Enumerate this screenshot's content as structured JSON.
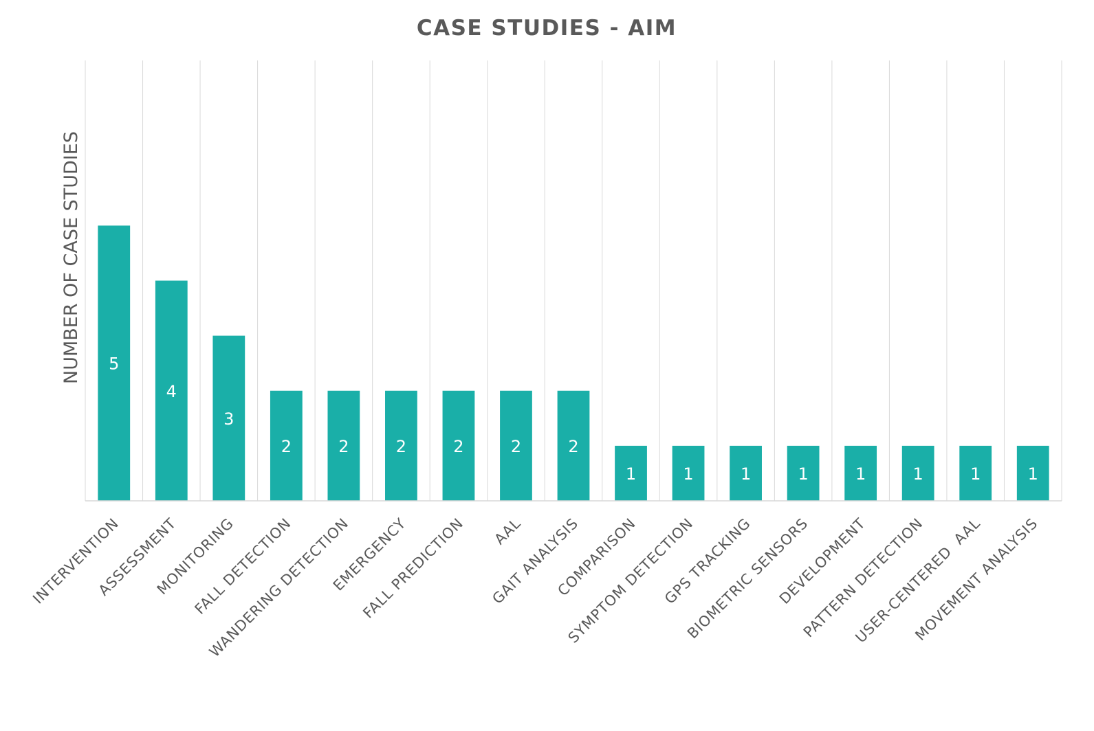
{
  "chart_data": {
    "type": "bar",
    "title": "CASE STUDIES - AIM",
    "xlabel": "",
    "ylabel": "NUMBER OF CASE STUDIES",
    "categories": [
      "INTERVENTION",
      "ASSESSMENT",
      "MONITORING",
      "FALL DETECTION",
      "WANDERING DETECTION",
      "EMERGENCY",
      "FALL PREDICTION",
      "AAL",
      "GAIT ANALYSIS",
      "COMPARISON",
      "SYMPTOM DETECTION",
      "GPS TRACKING",
      "BIOMETRIC SENSORS",
      "DEVELOPMENT",
      "PATTERN DETECTION",
      "USER-CENTERED  AAL",
      "MOVEMENT ANALYSIS"
    ],
    "values": [
      5,
      4,
      3,
      2,
      2,
      2,
      2,
      2,
      2,
      1,
      1,
      1,
      1,
      1,
      1,
      1,
      1
    ],
    "ylim": [
      0,
      8
    ],
    "grid": "vertical",
    "data_labels": true,
    "legend": "none",
    "colors": {
      "bar": "#1aafa8",
      "grid": "#d9d9d9",
      "text": "#595959",
      "data_label": "#ffffff"
    }
  }
}
